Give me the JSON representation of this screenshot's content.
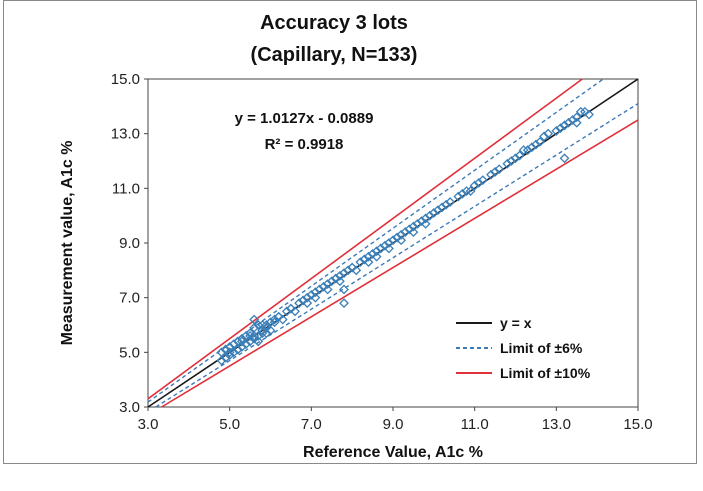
{
  "chart_data": {
    "type": "scatter",
    "title": "Accuracy 3 lots",
    "subtitle": "(Capillary, N=133)",
    "xlabel": "Reference Value, A1c %",
    "ylabel": "Measurement value, A1c %",
    "xlim": [
      3.0,
      15.0
    ],
    "ylim": [
      3.0,
      15.0
    ],
    "xticks": [
      "3.0",
      "5.0",
      "7.0",
      "9.0",
      "11.0",
      "13.0",
      "15.0"
    ],
    "yticks": [
      "3.0",
      "5.0",
      "7.0",
      "9.0",
      "11.0",
      "13.0",
      "15.0"
    ],
    "grid": false,
    "legend_position": "bottom-right",
    "regression": {
      "equation": "y = 1.0127x - 0.0889",
      "r_squared": "R² = 0.9918",
      "slope": 1.0127,
      "intercept": -0.0889
    },
    "lines": [
      {
        "name": "y = x",
        "type": "identity",
        "factor": 1.0,
        "color": "#1a1a1a",
        "dashed": false
      },
      {
        "name": "Limit of ±6%",
        "type": "limit",
        "factor": 0.06,
        "color": "#3d7ab8",
        "dashed": true
      },
      {
        "name": "Limit of ±10%",
        "type": "limit",
        "factor": 0.1,
        "color": "#e0303a",
        "dashed": false
      }
    ],
    "points": {
      "color": "#3a7fb8",
      "marker": "open-diamond",
      "x": [
        4.8,
        4.8,
        4.9,
        4.9,
        5.0,
        5.0,
        5.1,
        5.1,
        5.2,
        5.2,
        5.3,
        5.3,
        5.4,
        5.4,
        5.5,
        5.5,
        5.6,
        5.6,
        5.6,
        5.7,
        5.7,
        5.7,
        5.8,
        5.8,
        5.9,
        5.9,
        6.0,
        6.0,
        6.1,
        6.2,
        6.3,
        6.4,
        6.5,
        6.6,
        6.7,
        6.8,
        6.9,
        7.0,
        7.1,
        7.2,
        7.3,
        7.4,
        7.5,
        7.6,
        7.7,
        7.8,
        7.8,
        7.9,
        8.0,
        8.1,
        8.2,
        8.3,
        8.4,
        8.5,
        8.6,
        8.7,
        8.8,
        8.9,
        9.0,
        9.1,
        9.2,
        9.3,
        9.4,
        9.5,
        9.6,
        9.7,
        9.8,
        9.9,
        10.0,
        10.1,
        10.2,
        10.4,
        10.6,
        10.8,
        11.0,
        11.2,
        11.4,
        11.6,
        11.8,
        12.0,
        12.2,
        12.4,
        12.6,
        12.8,
        13.0,
        13.2,
        13.4,
        13.5,
        13.6,
        13.8,
        5.0,
        5.3,
        5.6,
        5.9,
        6.2,
        6.5,
        6.8,
        7.1,
        7.4,
        7.7,
        8.0,
        8.3,
        8.6,
        8.9,
        9.2,
        9.5,
        9.8,
        10.3,
        10.7,
        11.1,
        11.5,
        11.9,
        12.3,
        12.7,
        13.1,
        13.3,
        13.5,
        4.9,
        5.2,
        5.5,
        5.8,
        6.1,
        6.9,
        7.6,
        8.4,
        9.1,
        10.9,
        12.1,
        12.5,
        13.2,
        13.7,
        7.8,
        13.2
      ],
      "y": [
        4.7,
        5.0,
        5.1,
        4.8,
        5.2,
        4.9,
        5.0,
        5.3,
        5.1,
        5.4,
        5.2,
        5.5,
        5.6,
        5.3,
        5.4,
        5.7,
        5.5,
        6.2,
        5.9,
        5.6,
        6.0,
        5.4,
        5.8,
        6.0,
        5.9,
        5.7,
        6.1,
        5.8,
        6.2,
        6.3,
        6.2,
        6.5,
        6.6,
        6.5,
        6.8,
        6.9,
        6.8,
        7.1,
        7.0,
        7.3,
        7.4,
        7.3,
        7.6,
        7.7,
        7.6,
        7.9,
        6.8,
        8.0,
        8.1,
        8.0,
        8.3,
        8.4,
        8.3,
        8.6,
        8.5,
        8.8,
        8.9,
        8.8,
        9.1,
        9.2,
        9.1,
        9.4,
        9.5,
        9.4,
        9.7,
        9.8,
        9.7,
        10.0,
        10.1,
        10.2,
        10.3,
        10.5,
        10.7,
        10.9,
        11.1,
        11.3,
        11.5,
        11.7,
        11.9,
        12.1,
        12.4,
        12.5,
        12.7,
        13.0,
        13.1,
        13.3,
        13.5,
        13.4,
        13.8,
        13.7,
        5.0,
        5.4,
        5.6,
        6.0,
        6.3,
        6.6,
        6.9,
        7.2,
        7.5,
        7.8,
        8.1,
        8.4,
        8.7,
        9.0,
        9.3,
        9.6,
        9.9,
        10.4,
        10.8,
        11.2,
        11.6,
        12.0,
        12.4,
        12.9,
        13.2,
        13.4,
        13.6,
        5.1,
        5.1,
        5.6,
        5.7,
        6.1,
        7.0,
        7.7,
        8.5,
        9.2,
        10.9,
        12.2,
        12.6,
        13.3,
        13.8,
        7.3,
        12.1
      ]
    }
  }
}
